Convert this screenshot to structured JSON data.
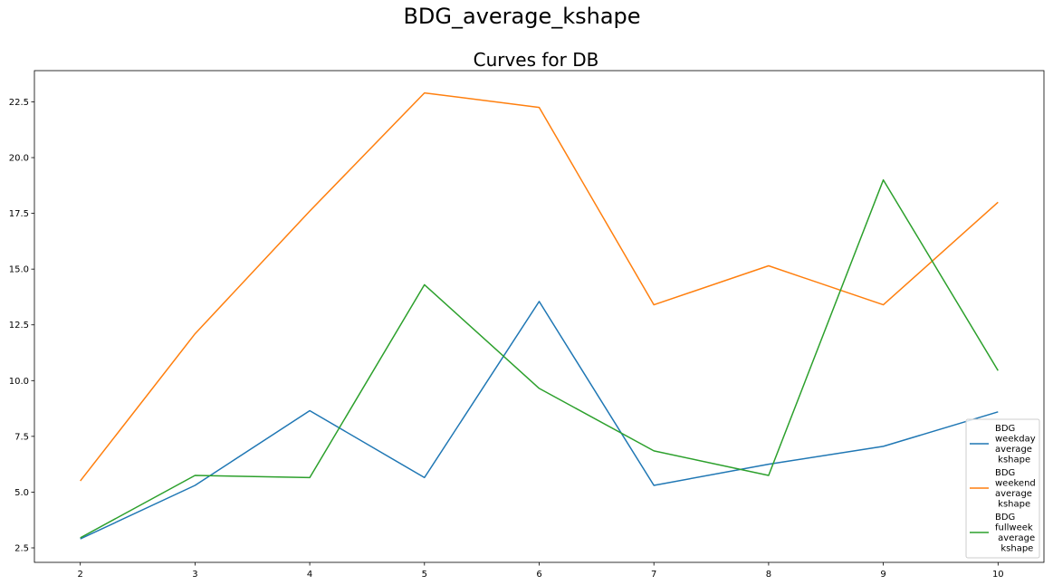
{
  "figure": {
    "suptitle": "BDG_average_kshape"
  },
  "chart_data": {
    "type": "line",
    "title": "Curves for DB",
    "xlabel": "",
    "ylabel": "",
    "x": [
      2,
      3,
      4,
      5,
      6,
      7,
      8,
      9,
      10
    ],
    "xticks": [
      2,
      3,
      4,
      5,
      6,
      7,
      8,
      9,
      10
    ],
    "xlim": [
      1.6,
      10.4
    ],
    "yticks": [
      2.5,
      5.0,
      7.5,
      10.0,
      12.5,
      15.0,
      17.5,
      20.0,
      22.5
    ],
    "ylim": [
      1.85,
      23.9
    ],
    "grid": false,
    "legend_position": "lower-right",
    "series": [
      {
        "name": [
          "BDG",
          "weekday",
          "average",
          " kshape"
        ],
        "color": "#1f77b4",
        "values": [
          2.9,
          5.3,
          8.65,
          5.65,
          13.55,
          5.3,
          6.25,
          7.05,
          8.6
        ]
      },
      {
        "name": [
          "BDG",
          "weekend",
          "average",
          " kshape"
        ],
        "color": "#ff7f0e",
        "values": [
          5.5,
          12.1,
          17.6,
          22.9,
          22.25,
          13.4,
          15.15,
          13.4,
          18.0
        ]
      },
      {
        "name": [
          "BDG",
          "fullweek",
          " average",
          "  kshape"
        ],
        "color": "#2ca02c",
        "values": [
          2.95,
          5.75,
          5.65,
          14.3,
          9.65,
          6.85,
          5.75,
          19.0,
          10.45
        ]
      }
    ]
  }
}
